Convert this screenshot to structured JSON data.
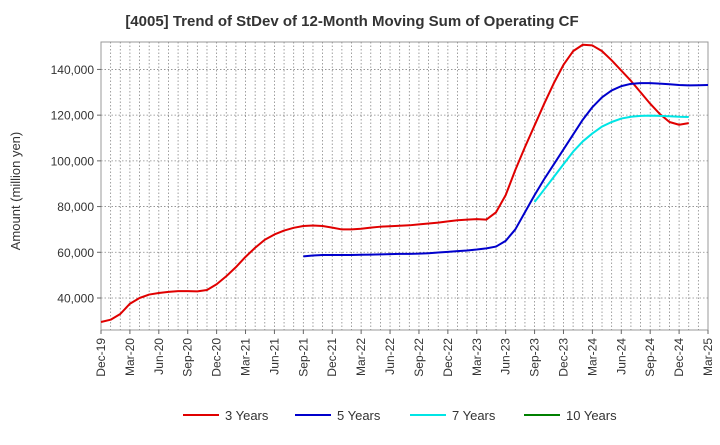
{
  "chart_data": {
    "type": "line",
    "title": "[4005]  Trend of StDev of 12-Month Moving Sum of Operating CF",
    "xlabel": "",
    "ylabel": "Amount (million yen)",
    "ylim": [
      26000,
      152000
    ],
    "y_ticks": [
      40000,
      60000,
      80000,
      100000,
      120000,
      140000
    ],
    "y_tick_labels": [
      "40,000",
      "60,000",
      "80,000",
      "100,000",
      "120,000",
      "140,000"
    ],
    "x_start": "Dec-19",
    "x_tick_labels": [
      "Dec-19",
      "Mar-20",
      "Jun-20",
      "Sep-20",
      "Dec-20",
      "Mar-21",
      "Jun-21",
      "Sep-21",
      "Dec-21",
      "Mar-22",
      "Jun-22",
      "Sep-22",
      "Dec-22",
      "Mar-23",
      "Jun-23",
      "Sep-23",
      "Dec-23",
      "Mar-24",
      "Jun-24",
      "Sep-24",
      "Dec-24",
      "Mar-25"
    ],
    "grid": true,
    "legend_position": "bottom",
    "series": [
      {
        "name": "3 Years",
        "color": "#e00000",
        "start_month_index": 0,
        "values": [
          29500,
          30500,
          33000,
          37500,
          40000,
          41500,
          42200,
          42700,
          43000,
          43000,
          42900,
          43500,
          46000,
          49500,
          53500,
          58000,
          62000,
          65500,
          67800,
          69500,
          70700,
          71500,
          71700,
          71500,
          70800,
          70000,
          70000,
          70300,
          70800,
          71200,
          71400,
          71600,
          71800,
          72200,
          72600,
          73000,
          73500,
          74000,
          74300,
          74500,
          74300,
          77500,
          85000,
          96000,
          106000,
          115500,
          125000,
          134000,
          142000,
          148000,
          150800,
          150500,
          148000,
          144000,
          139500,
          135000,
          130000,
          125000,
          120500,
          117000,
          115800,
          116500
        ]
      },
      {
        "name": "5 Years",
        "color": "#0000cc",
        "start_month_index": 21,
        "values": [
          58200,
          58600,
          58800,
          58800,
          58800,
          58800,
          58900,
          59000,
          59100,
          59200,
          59300,
          59300,
          59400,
          59600,
          59900,
          60200,
          60500,
          60800,
          61200,
          61700,
          62500,
          65000,
          70000,
          77500,
          85000,
          92000,
          98500,
          105000,
          111500,
          118000,
          123500,
          127800,
          130800,
          132700,
          133700,
          134000,
          134000,
          133800,
          133500,
          133200,
          133000,
          133100,
          133200
        ]
      },
      {
        "name": "7 Years",
        "color": "#00e5e5",
        "start_month_index": 45,
        "values": [
          82000,
          87500,
          93000,
          98500,
          104000,
          108500,
          112000,
          115000,
          117000,
          118500,
          119300,
          119700,
          119800,
          119700,
          119500,
          119300,
          119200
        ]
      },
      {
        "name": "10 Years",
        "color": "#008000",
        "start_month_index": 0,
        "values": []
      }
    ]
  }
}
